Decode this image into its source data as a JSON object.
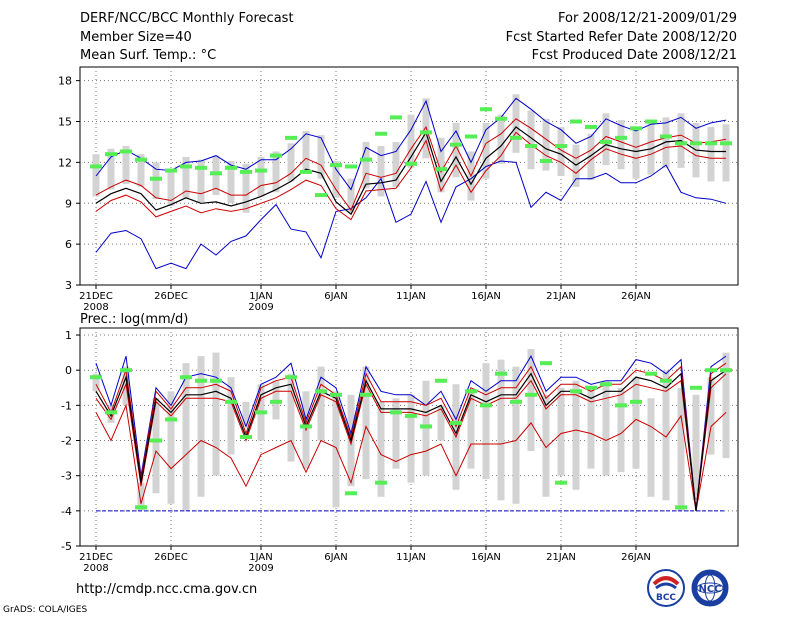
{
  "header": {
    "title": "DERF/NCC/BCC Monthly Forecast",
    "member_size": "Member Size=40",
    "variable": "Mean Surf. Temp.: °C",
    "period": "For 2008/12/21-2009/01/29",
    "started": "Fcst Started Refer Date 2008/12/20",
    "produced": "Fcst Produced Date 2008/12/21"
  },
  "footer": {
    "url": "http://cmdp.ncc.cma.gov.cn",
    "grads": "GrADS: COLA/IGES",
    "logo_bcc": "BCC",
    "logo_ncc": "NCC"
  },
  "colors": {
    "ensemble_bar": "#d3d3d3",
    "ensemble_mean": "#000000",
    "spread_inner": "#cc0000",
    "spread_outer": "#0000cc",
    "member_marker": "#55ee55"
  },
  "chart_data": [
    {
      "type": "line",
      "title": "Mean Surf. Temp.: °C",
      "days": 39,
      "x_tick_labels": [
        "21DEC",
        "26DEC",
        "1JAN",
        "6JAN",
        "11JAN",
        "16JAN",
        "21JAN",
        "26JAN"
      ],
      "x_tick_days": [
        0,
        5,
        11,
        16,
        21,
        26,
        31,
        36
      ],
      "x_sub_labels": [
        {
          "day": 0,
          "text": "2008"
        },
        {
          "day": 11,
          "text": "2009"
        }
      ],
      "ylim": [
        3,
        19
      ],
      "yticks": [
        3,
        6,
        9,
        12,
        15,
        18
      ],
      "series": [
        {
          "name": "bar_high",
          "values": [
            12.6,
            13.0,
            13.2,
            12.6,
            12.0,
            11.4,
            12.4,
            12.2,
            12.5,
            12.1,
            11.9,
            12.4,
            12.8,
            13.4,
            14.3,
            14.0,
            12.1,
            10.8,
            13.5,
            13.2,
            13.5,
            15.5,
            16.7,
            13.8,
            14.9,
            12.8,
            14.9,
            15.5,
            17.0,
            15.8,
            15.2,
            14.6,
            13.3,
            14.1,
            15.6,
            15.1,
            14.6,
            14.9,
            15.3,
            15.6,
            14.9,
            14.6,
            14.8
          ]
        },
        {
          "name": "bar_low",
          "values": [
            9.5,
            10.0,
            10.4,
            10.2,
            9.3,
            8.8,
            9.4,
            9.1,
            9.6,
            9.0,
            8.3,
            9.5,
            9.8,
            10.6,
            11.4,
            10.8,
            9.4,
            8.3,
            10.1,
            9.5,
            10.2,
            11.6,
            12.3,
            9.8,
            10.9,
            9.2,
            10.8,
            11.9,
            12.7,
            11.5,
            11.4,
            11.0,
            10.2,
            10.7,
            11.8,
            11.5,
            10.8,
            11.1,
            11.6,
            11.6,
            10.9,
            10.6,
            10.6
          ]
        },
        {
          "name": "upper_outer",
          "values": [
            11.0,
            12.4,
            12.9,
            12.3,
            11.5,
            11.4,
            12.0,
            12.1,
            12.5,
            11.8,
            11.5,
            12.2,
            12.2,
            13.0,
            14.1,
            13.8,
            11.5,
            10.0,
            13.1,
            12.5,
            12.8,
            14.4,
            16.5,
            12.8,
            14.3,
            12.0,
            14.4,
            15.3,
            16.7,
            15.9,
            15.0,
            14.4,
            13.4,
            13.9,
            15.2,
            14.7,
            14.3,
            14.8,
            14.9,
            15.3,
            14.5,
            14.9,
            15.1
          ]
        },
        {
          "name": "upper_inner",
          "values": [
            9.6,
            10.2,
            10.7,
            10.3,
            9.4,
            9.2,
            9.9,
            9.7,
            10.1,
            9.6,
            9.6,
            10.3,
            10.5,
            11.2,
            12.3,
            11.8,
            10.0,
            8.5,
            11.2,
            10.9,
            11.2,
            13.0,
            14.6,
            11.3,
            13.2,
            11.0,
            13.4,
            14.1,
            15.2,
            14.5,
            13.7,
            12.9,
            12.3,
            12.9,
            13.9,
            13.5,
            13.1,
            13.5,
            13.8,
            14.0,
            13.4,
            13.5,
            13.7
          ]
        },
        {
          "name": "ensemble_mean",
          "values": [
            9.0,
            9.7,
            10.1,
            9.7,
            8.5,
            8.9,
            9.4,
            9.0,
            9.1,
            8.8,
            9.1,
            9.5,
            10.0,
            10.6,
            11.5,
            11.2,
            9.1,
            8.2,
            10.4,
            10.5,
            10.7,
            12.4,
            14.2,
            10.6,
            12.4,
            10.4,
            12.3,
            13.2,
            14.6,
            13.8,
            13.0,
            12.6,
            11.8,
            12.5,
            13.3,
            13.0,
            12.8,
            13.0,
            13.5,
            13.6,
            12.9,
            12.8,
            12.8
          ]
        },
        {
          "name": "lower_inner",
          "values": [
            8.4,
            9.2,
            9.6,
            9.1,
            8.0,
            8.4,
            8.8,
            8.3,
            8.6,
            8.4,
            8.6,
            9.0,
            9.4,
            10.0,
            10.7,
            10.3,
            8.6,
            7.8,
            9.9,
            10.0,
            10.1,
            11.6,
            13.6,
            9.9,
            11.8,
            9.8,
            11.4,
            12.5,
            14.2,
            13.3,
            12.5,
            12.0,
            11.2,
            12.2,
            13.0,
            12.6,
            12.3,
            12.6,
            13.1,
            13.2,
            12.5,
            12.3,
            12.3
          ]
        },
        {
          "name": "lower_outer",
          "values": [
            5.4,
            6.8,
            7.0,
            6.4,
            4.2,
            4.6,
            4.2,
            6.0,
            5.2,
            6.2,
            6.6,
            7.8,
            8.9,
            7.1,
            6.9,
            5.0,
            8.4,
            8.6,
            9.4,
            10.8,
            7.6,
            8.2,
            10.6,
            7.6,
            10.2,
            10.8,
            11.7,
            12.1,
            12.0,
            8.7,
            9.8,
            9.2,
            10.8,
            10.8,
            11.2,
            10.5,
            10.5,
            11.0,
            11.8,
            9.8,
            9.4,
            9.3,
            9.0
          ]
        },
        {
          "name": "markers",
          "values": [
            11.7,
            12.6,
            12.8,
            12.2,
            10.8,
            11.4,
            11.7,
            11.6,
            11.2,
            11.6,
            11.3,
            11.4,
            12.5,
            13.8,
            11.3,
            9.6,
            11.8,
            11.7,
            12.2,
            14.1,
            15.3,
            11.9,
            14.2,
            11.5,
            13.3,
            13.9,
            15.9,
            15.2,
            13.8,
            13.2,
            12.1,
            13.2,
            15.0,
            14.6,
            13.5,
            13.8,
            14.5,
            15.0,
            13.9,
            13.4,
            13.4,
            13.4,
            13.4
          ]
        }
      ]
    },
    {
      "type": "line",
      "title": "Prec.: log(mm/d)",
      "days": 39,
      "x_tick_labels": [
        "21DEC",
        "26DEC",
        "1JAN",
        "6JAN",
        "11JAN",
        "16JAN",
        "21JAN",
        "26JAN"
      ],
      "x_tick_days": [
        0,
        5,
        11,
        16,
        21,
        26,
        31,
        36
      ],
      "x_sub_labels": [
        {
          "day": 0,
          "text": "2008"
        },
        {
          "day": 11,
          "text": "2009"
        }
      ],
      "ylim": [
        -5,
        1.2
      ],
      "yticks": [
        -5,
        -4,
        -3,
        -2,
        -1,
        0,
        1
      ],
      "baseline": -4,
      "series": [
        {
          "name": "bar_high",
          "values": [
            -0.1,
            -1.0,
            0.1,
            -3.2,
            -0.8,
            -0.6,
            0.2,
            0.4,
            0.5,
            -0.2,
            -0.9,
            -0.4,
            -0.3,
            -0.1,
            -0.6,
            0.1,
            -0.6,
            -0.7,
            0.1,
            -0.9,
            -0.8,
            -0.7,
            -0.3,
            -1.0,
            -0.4,
            -0.6,
            0.2,
            0.3,
            0.1,
            0.6,
            -0.7,
            -0.5,
            -0.3,
            -0.5,
            -0.3,
            -0.5,
            -0.2,
            -0.8,
            0.0,
            -0.5,
            -0.7,
            -0.2,
            0.5
          ]
        },
        {
          "name": "bar_low",
          "values": [
            -0.6,
            -1.5,
            -1.0,
            -4.0,
            -3.5,
            -3.8,
            -4.0,
            -3.6,
            -3.0,
            -2.4,
            -1.6,
            -2.0,
            -1.4,
            -2.6,
            -2.8,
            -2.0,
            -3.9,
            -3.3,
            -3.1,
            -3.6,
            -2.8,
            -3.2,
            -3.0,
            -2.0,
            -3.4,
            -2.8,
            -3.1,
            -3.7,
            -3.8,
            -2.3,
            -3.6,
            -3.0,
            -3.4,
            -2.8,
            -3.0,
            -2.9,
            -2.8,
            -3.6,
            -3.7,
            -4.0,
            -3.7,
            -2.4,
            -2.5
          ]
        },
        {
          "name": "upper_outer",
          "values": [
            0.2,
            -1.0,
            0.4,
            -3.0,
            -0.5,
            -1.0,
            -0.2,
            -0.1,
            -0.2,
            -0.5,
            -1.6,
            -0.4,
            -0.2,
            0.2,
            -1.4,
            -0.2,
            -0.5,
            -1.8,
            0.1,
            -0.6,
            -0.7,
            -0.7,
            -1.0,
            -0.6,
            -1.4,
            -0.3,
            -0.6,
            -0.3,
            -0.3,
            0.4,
            -0.6,
            -0.2,
            -0.2,
            -0.4,
            -0.3,
            -0.3,
            0.3,
            0.2,
            -0.1,
            0.3,
            -4.0,
            0.1,
            0.4
          ]
        },
        {
          "name": "upper_inner",
          "values": [
            -0.4,
            -1.2,
            0.0,
            -3.1,
            -0.6,
            -1.1,
            -0.5,
            -0.5,
            -0.4,
            -0.6,
            -1.8,
            -0.5,
            -0.3,
            -0.2,
            -1.5,
            -0.4,
            -0.7,
            -1.9,
            -0.1,
            -0.9,
            -0.9,
            -0.9,
            -1.0,
            -0.8,
            -1.6,
            -0.5,
            -0.7,
            -0.5,
            -0.5,
            0.1,
            -0.8,
            -0.4,
            -0.4,
            -0.6,
            -0.4,
            -0.4,
            0.0,
            -0.1,
            -0.3,
            0.1,
            -4.0,
            -0.1,
            0.2
          ]
        },
        {
          "name": "ensemble_mean",
          "values": [
            -0.6,
            -1.3,
            -0.2,
            -3.2,
            -0.8,
            -1.2,
            -0.7,
            -0.7,
            -0.6,
            -0.8,
            -1.9,
            -0.7,
            -0.5,
            -0.4,
            -1.6,
            -0.6,
            -0.8,
            -2.0,
            -0.3,
            -1.1,
            -1.1,
            -1.1,
            -1.2,
            -1.0,
            -1.8,
            -0.7,
            -0.9,
            -0.7,
            -0.7,
            -0.1,
            -1.0,
            -0.6,
            -0.6,
            -0.8,
            -0.6,
            -0.6,
            -0.2,
            -0.3,
            -0.5,
            -0.1,
            -4.0,
            -0.3,
            0.0
          ]
        },
        {
          "name": "lower_inner",
          "values": [
            -0.8,
            -1.4,
            -0.4,
            -3.3,
            -0.9,
            -1.3,
            -0.8,
            -0.8,
            -0.8,
            -0.9,
            -2.0,
            -0.8,
            -0.6,
            -0.6,
            -1.7,
            -0.7,
            -0.9,
            -2.1,
            -0.4,
            -1.2,
            -1.2,
            -1.2,
            -1.3,
            -1.1,
            -1.9,
            -0.8,
            -1.0,
            -0.8,
            -0.8,
            -0.3,
            -1.1,
            -0.7,
            -0.7,
            -0.9,
            -0.8,
            -0.7,
            -0.4,
            -0.5,
            -0.6,
            -0.3,
            -4.0,
            -0.5,
            -0.1
          ]
        },
        {
          "name": "lower_red",
          "values": [
            -1.2,
            -2.0,
            -1.0,
            -3.8,
            -2.3,
            -2.8,
            -2.4,
            -2.0,
            -2.2,
            -2.5,
            -3.3,
            -2.4,
            -2.2,
            -2.0,
            -2.9,
            -2.0,
            -2.2,
            -3.2,
            -1.6,
            -2.4,
            -2.6,
            -2.4,
            -2.3,
            -2.1,
            -3.0,
            -2.1,
            -2.1,
            -2.1,
            -2.0,
            -1.5,
            -2.2,
            -1.8,
            -1.7,
            -1.8,
            -2.0,
            -1.8,
            -1.4,
            -1.6,
            -1.9,
            -1.3,
            -4.0,
            -1.6,
            -1.2
          ]
        },
        {
          "name": "markers",
          "values": [
            -0.2,
            -1.2,
            0.0,
            -3.9,
            -2.0,
            -1.4,
            -0.2,
            -0.3,
            -0.3,
            -0.9,
            -1.9,
            -1.2,
            -0.9,
            -0.2,
            -1.6,
            -0.6,
            -0.7,
            -3.5,
            -0.7,
            -3.2,
            -1.2,
            -1.3,
            -1.6,
            -0.3,
            -1.5,
            -0.6,
            -1.0,
            -0.1,
            -0.9,
            -0.7,
            0.2,
            -3.2,
            -0.6,
            -0.5,
            -0.4,
            -1.0,
            -0.9,
            -0.1,
            -0.3,
            -3.9,
            -0.5,
            0.0,
            0.0
          ]
        }
      ]
    }
  ]
}
